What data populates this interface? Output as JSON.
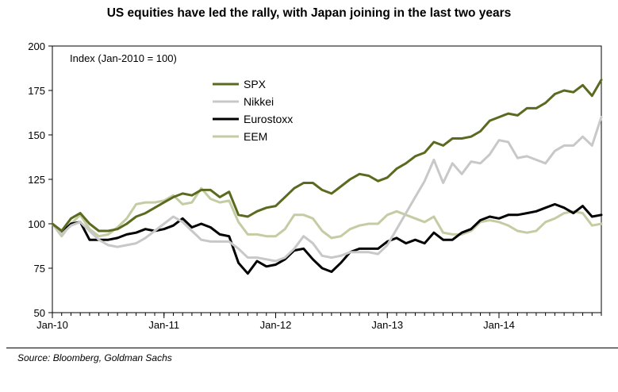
{
  "title": "US equities have led the rally, with Japan joining in the last two years",
  "source": "Source: Bloomberg, Goldman Sachs",
  "chart_data": {
    "type": "line",
    "title": "US equities have led the rally, with Japan joining in the last two years",
    "annotation": "Index (Jan-2010 = 100)",
    "xlabel": "",
    "ylabel": "",
    "ylim": [
      50,
      200
    ],
    "yticks": [
      50,
      75,
      100,
      125,
      150,
      175,
      200
    ],
    "xlim": [
      0,
      59
    ],
    "xticks": [
      {
        "label": "Jan-10",
        "x": 0
      },
      {
        "label": "Jan-11",
        "x": 12
      },
      {
        "label": "Jan-12",
        "x": 24
      },
      {
        "label": "Jan-13",
        "x": 36
      },
      {
        "label": "Jan-14",
        "x": 48
      }
    ],
    "legend_position": "top-center",
    "grid": false,
    "series": [
      {
        "name": "SPX",
        "color": "#5a6b1f",
        "values": [
          100,
          96,
          103,
          106,
          100,
          96,
          96,
          97,
          100,
          104,
          106,
          109,
          112,
          115,
          117,
          116,
          119,
          119,
          115,
          118,
          105,
          104,
          107,
          109,
          110,
          115,
          120,
          123,
          123,
          119,
          117,
          121,
          125,
          128,
          127,
          124,
          126,
          131,
          134,
          138,
          140,
          146,
          144,
          148,
          148,
          149,
          152,
          158,
          160,
          162,
          161,
          165,
          165,
          168,
          173,
          175,
          174,
          178,
          172,
          181
        ]
      },
      {
        "name": "Nikkei",
        "color": "#c8c8c8",
        "values": [
          100,
          94,
          99,
          101,
          96,
          91,
          88,
          87,
          88,
          89,
          92,
          96,
          100,
          104,
          101,
          96,
          91,
          90,
          90,
          90,
          86,
          81,
          81,
          80,
          79,
          81,
          86,
          93,
          89,
          82,
          81,
          82,
          84,
          84,
          84,
          83,
          88,
          97,
          106,
          115,
          124,
          136,
          123,
          134,
          128,
          135,
          134,
          139,
          147,
          146,
          137,
          138,
          136,
          134,
          141,
          144,
          144,
          149,
          144,
          160
        ]
      },
      {
        "name": "Eurostoxx",
        "color": "#000000",
        "values": [
          100,
          95,
          100,
          101,
          91,
          91,
          91,
          92,
          94,
          95,
          97,
          96,
          97,
          99,
          103,
          98,
          100,
          98,
          94,
          93,
          78,
          72,
          79,
          76,
          77,
          80,
          85,
          86,
          80,
          75,
          73,
          78,
          84,
          86,
          86,
          86,
          90,
          92,
          89,
          91,
          89,
          95,
          91,
          91,
          95,
          97,
          102,
          104,
          103,
          105,
          105,
          106,
          107,
          109,
          111,
          109,
          106,
          110,
          104,
          105
        ]
      },
      {
        "name": "EEM",
        "color": "#c4cca3",
        "values": [
          100,
          93,
          100,
          105,
          97,
          93,
          94,
          98,
          103,
          111,
          112,
          112,
          113,
          116,
          111,
          112,
          120,
          114,
          112,
          113,
          101,
          94,
          94,
          93,
          93,
          97,
          105,
          105,
          103,
          96,
          92,
          93,
          97,
          99,
          100,
          100,
          105,
          107,
          105,
          103,
          101,
          104,
          95,
          94,
          94,
          96,
          101,
          102,
          101,
          99,
          96,
          95,
          96,
          101,
          103,
          106,
          107,
          106,
          99,
          100
        ]
      }
    ]
  }
}
